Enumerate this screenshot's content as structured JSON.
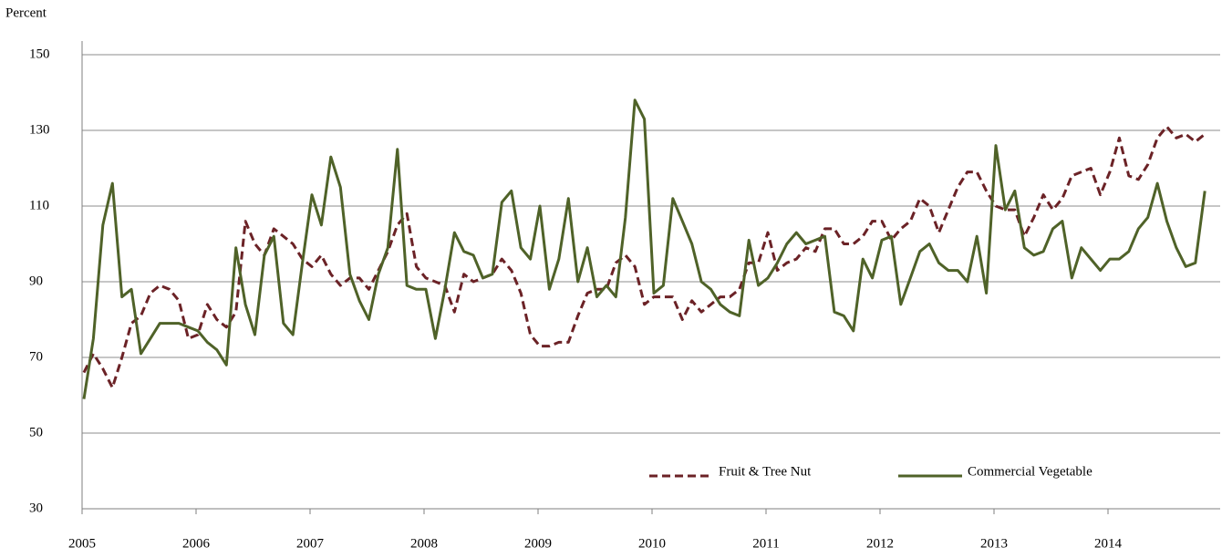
{
  "chart_data": {
    "type": "line",
    "y_label": "Percent",
    "categories": [
      "2005",
      null,
      null,
      null,
      null,
      null,
      null,
      null,
      null,
      null,
      null,
      null,
      "2006",
      null,
      null,
      null,
      null,
      null,
      null,
      null,
      null,
      null,
      null,
      null,
      "2007",
      null,
      null,
      null,
      null,
      null,
      null,
      null,
      null,
      null,
      null,
      null,
      "2008",
      null,
      null,
      null,
      null,
      null,
      null,
      null,
      null,
      null,
      null,
      null,
      "2009",
      null,
      null,
      null,
      null,
      null,
      null,
      null,
      null,
      null,
      null,
      null,
      "2010",
      null,
      null,
      null,
      null,
      null,
      null,
      null,
      null,
      null,
      null,
      null,
      "2011",
      null,
      null,
      null,
      null,
      null,
      null,
      null,
      null,
      null,
      null,
      null,
      "2012",
      null,
      null,
      null,
      null,
      null,
      null,
      null,
      null,
      null,
      null,
      null,
      "2013",
      null,
      null,
      null,
      null,
      null,
      null,
      null,
      null,
      null,
      null,
      null,
      "2014",
      null,
      null,
      null,
      null,
      null,
      null,
      null,
      null,
      null,
      null
    ],
    "series": [
      {
        "name": "Fruit & Tree Nut",
        "color": "#6b2226",
        "dashed": true,
        "values": [
          66,
          71,
          67,
          62,
          70,
          79,
          81,
          87,
          89,
          88,
          85,
          75,
          76,
          84,
          80,
          78,
          82,
          106,
          100,
          97,
          104,
          102,
          100,
          96,
          94,
          97,
          92,
          89,
          91,
          91,
          88,
          93,
          98,
          105,
          108,
          94,
          91,
          90,
          89,
          82,
          92,
          90,
          91,
          92,
          96,
          93,
          87,
          76,
          73,
          73,
          74,
          74,
          81,
          87,
          88,
          88,
          95,
          97,
          94,
          84,
          86,
          86,
          86,
          80,
          85,
          82,
          84,
          86,
          86,
          88,
          95,
          95,
          103,
          93,
          95,
          96,
          99,
          98,
          104,
          104,
          100,
          100,
          102,
          106,
          106,
          101,
          104,
          106,
          112,
          110,
          103,
          109,
          115,
          119,
          119,
          114,
          110,
          109,
          109,
          102,
          107,
          113,
          109,
          112,
          118,
          119,
          120,
          113,
          119,
          128,
          118,
          117,
          121,
          128,
          131,
          128,
          129,
          127,
          129
        ]
      },
      {
        "name": "Commercial Vegetable",
        "color": "#4f6228",
        "dashed": false,
        "values": [
          59,
          75,
          105,
          116,
          86,
          88,
          71,
          75,
          79,
          79,
          79,
          78,
          77,
          74,
          72,
          68,
          99,
          84,
          76,
          97,
          102,
          79,
          76,
          95,
          113,
          105,
          123,
          115,
          92,
          85,
          80,
          92,
          99,
          125,
          89,
          88,
          88,
          75,
          88,
          103,
          98,
          97,
          91,
          92,
          111,
          114,
          99,
          96,
          110,
          88,
          96,
          112,
          90,
          99,
          86,
          89,
          86,
          107,
          138,
          133,
          87,
          89,
          112,
          106,
          100,
          90,
          88,
          84,
          82,
          81,
          101,
          89,
          91,
          95,
          100,
          103,
          100,
          101,
          102,
          82,
          81,
          77,
          96,
          91,
          101,
          102,
          84,
          91,
          98,
          100,
          95,
          93,
          93,
          90,
          102,
          87,
          126,
          109,
          114,
          99,
          97,
          98,
          104,
          106,
          91,
          99,
          96,
          93,
          96,
          96,
          98,
          104,
          107,
          116,
          106,
          99,
          94,
          95,
          114
        ]
      }
    ],
    "ylim": [
      30,
      150
    ],
    "yticks": [
      30,
      50,
      70,
      90,
      110,
      130,
      150
    ],
    "grid": true
  }
}
